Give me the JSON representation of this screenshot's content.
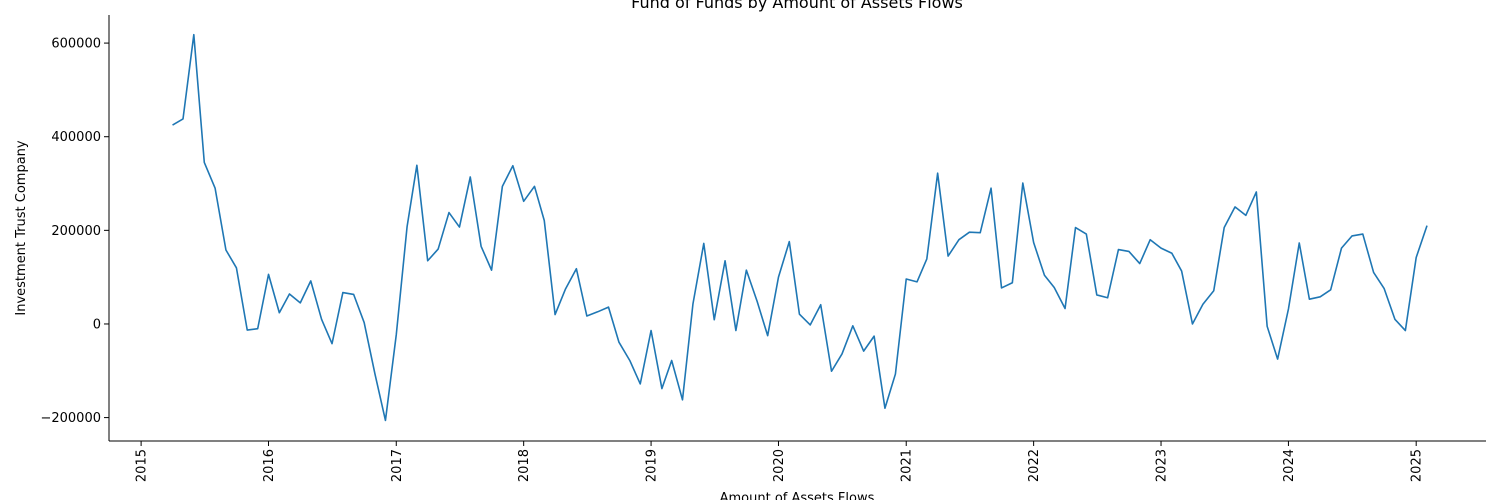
{
  "chart_data": {
    "type": "line",
    "title": "Fund of Funds by Amount of Assets Flows",
    "xlabel": "Amount of Assets Flows",
    "ylabel": "Investment Trust Company",
    "xlim": [
      "2014-10-01",
      "2025-07-20"
    ],
    "ylim": [
      -250000,
      660000
    ],
    "x_ticks": [
      "2015",
      "2016",
      "2017",
      "2018",
      "2019",
      "2020",
      "2021",
      "2022",
      "2023",
      "2024",
      "2025"
    ],
    "y_ticks": [
      -200000,
      0,
      200000,
      400000,
      600000
    ],
    "y_tick_labels": [
      "−200000",
      "0",
      "200000",
      "400000",
      "600000"
    ],
    "grid": false,
    "line_color": "#1f77b4",
    "series": [
      {
        "x": [
          "2015-04",
          "2015-05",
          "2015-06",
          "2015-07",
          "2015-08",
          "2015-09",
          "2015-10",
          "2015-11",
          "2015-12",
          "2016-01",
          "2016-02",
          "2016-03",
          "2016-04",
          "2016-05",
          "2016-06",
          "2016-07",
          "2016-08",
          "2016-09",
          "2016-10",
          "2016-11",
          "2016-12",
          "2017-01",
          "2017-02",
          "2017-03",
          "2017-04",
          "2017-05",
          "2017-06",
          "2017-07",
          "2017-08",
          "2017-09",
          "2017-10",
          "2017-11",
          "2017-12",
          "2018-01",
          "2018-02",
          "2018-03",
          "2018-04",
          "2018-05",
          "2018-06",
          "2018-07",
          "2018-08",
          "2018-09",
          "2018-10",
          "2018-11",
          "2018-12",
          "2019-01",
          "2019-02",
          "2019-03",
          "2019-04",
          "2019-05",
          "2019-06",
          "2019-07",
          "2019-08",
          "2019-09",
          "2019-10",
          "2019-11",
          "2019-12",
          "2020-01",
          "2020-02",
          "2020-03",
          "2020-04",
          "2020-05",
          "2020-06",
          "2020-07",
          "2020-08",
          "2020-09",
          "2020-10",
          "2020-11",
          "2020-12",
          "2021-01",
          "2021-02",
          "2021-03",
          "2021-04",
          "2021-05",
          "2021-06",
          "2021-07",
          "2021-08",
          "2021-09",
          "2021-10",
          "2021-11",
          "2021-12",
          "2022-01",
          "2022-02",
          "2022-03",
          "2022-04",
          "2022-05",
          "2022-06",
          "2022-07",
          "2022-08",
          "2022-09",
          "2022-10",
          "2022-11",
          "2022-12",
          "2023-01",
          "2023-02",
          "2023-03",
          "2023-04",
          "2023-05",
          "2023-06",
          "2023-07",
          "2023-08",
          "2023-09",
          "2023-10",
          "2023-11",
          "2023-12",
          "2024-01",
          "2024-02",
          "2024-03",
          "2024-04",
          "2024-05",
          "2024-06",
          "2024-07",
          "2024-08",
          "2024-09",
          "2024-10",
          "2024-11",
          "2024-12",
          "2025-01",
          "2025-02"
        ],
        "values": [
          425000,
          438000,
          618000,
          345000,
          290000,
          158000,
          120000,
          -13000,
          -10000,
          106000,
          24000,
          64000,
          45000,
          92000,
          10000,
          -42000,
          67000,
          63000,
          3000,
          -107000,
          -206000,
          -23000,
          208000,
          339000,
          135000,
          160000,
          238000,
          207000,
          314000,
          166000,
          115000,
          294000,
          338000,
          262000,
          294000,
          221000,
          20000,
          75000,
          118000,
          17000,
          26000,
          36000,
          -39000,
          -78000,
          -128000,
          -14000,
          -138000,
          -78000,
          -162000,
          43000,
          172000,
          9000,
          135000,
          -14000,
          115000,
          48000,
          -25000,
          100000,
          176000,
          21000,
          -2000,
          41000,
          -101000,
          -64000,
          -4000,
          -58000,
          -26000,
          -180000,
          -107000,
          96000,
          90000,
          139000,
          322000,
          145000,
          180000,
          196000,
          195000,
          290000,
          77000,
          88000,
          301000,
          174000,
          104000,
          78000,
          33000,
          206000,
          192000,
          62000,
          56000,
          159000,
          155000,
          129000,
          180000,
          162000,
          151000,
          113000,
          0,
          42000,
          71000,
          206000,
          250000,
          232000,
          282000,
          -5000,
          -75000,
          32000,
          173000,
          53000,
          58000,
          73000,
          162000,
          188000,
          192000,
          110000,
          76000,
          10000,
          -14000,
          142000,
          210000
        ]
      }
    ]
  }
}
